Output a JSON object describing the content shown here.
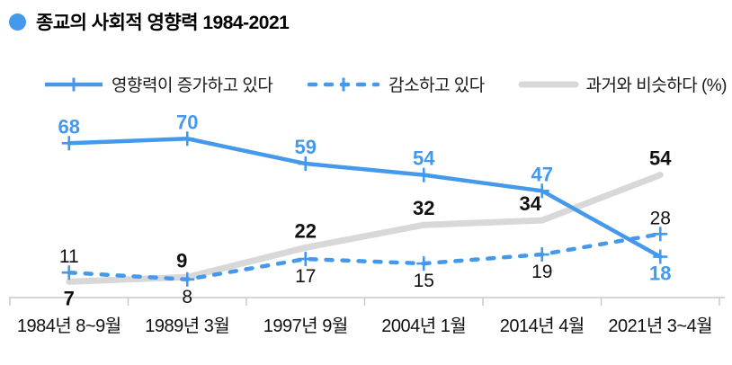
{
  "title": {
    "text": "종교의 사회적 영향력 1984-2021"
  },
  "legend": [
    {
      "label": "영향력이 증가하고 있다"
    },
    {
      "label": "감소하고 있다"
    },
    {
      "label": "과거와 비슷하다 (%)"
    }
  ],
  "colors": {
    "blue": "#4499EB",
    "gray": "#D8D8D8",
    "axis": "#C8C8C8",
    "label_dark": "#111111"
  },
  "chart_data": {
    "type": "line",
    "title": "종교의 사회적 영향력 1984-2021",
    "categories": [
      "1984년 8~9월",
      "1989년 3월",
      "1997년 9월",
      "2004년 1월",
      "2014년 4월",
      "2021년 3~4월"
    ],
    "unit": "%",
    "ylim": [
      0,
      80
    ],
    "grid": false,
    "legend_position": "top",
    "series": [
      {
        "name": "영향력이 증가하고 있다",
        "values": [
          68,
          70,
          59,
          54,
          47,
          18
        ],
        "style": "solid",
        "color": "#4499EB",
        "marker": "plus",
        "label_color": "#4499EB",
        "label_weight": "bold",
        "label_side": [
          "above",
          "above",
          "above",
          "above",
          "above",
          "below"
        ],
        "label_dx": [
          0,
          0,
          0,
          0,
          0,
          0
        ]
      },
      {
        "name": "감소하고 있다",
        "values": [
          11,
          8,
          17,
          15,
          19,
          28
        ],
        "style": "dashed",
        "color": "#4499EB",
        "marker": "plus",
        "label_color": "#111111",
        "label_weight": "normal",
        "label_side": [
          "above",
          "below",
          "below",
          "below",
          "below",
          "above"
        ],
        "label_dx": [
          0,
          0,
          0,
          0,
          0,
          0
        ]
      },
      {
        "name": "과거와 비슷하다 (%)",
        "values": [
          7,
          9,
          22,
          32,
          34,
          54
        ],
        "style": "solid",
        "color": "#D8D8D8",
        "marker": "none",
        "label_color": "#111111",
        "label_weight": "bold",
        "label_side": [
          "below",
          "above",
          "above",
          "above",
          "above",
          "above"
        ],
        "label_dx": [
          0,
          -6,
          0,
          0,
          -13,
          0
        ]
      }
    ]
  }
}
